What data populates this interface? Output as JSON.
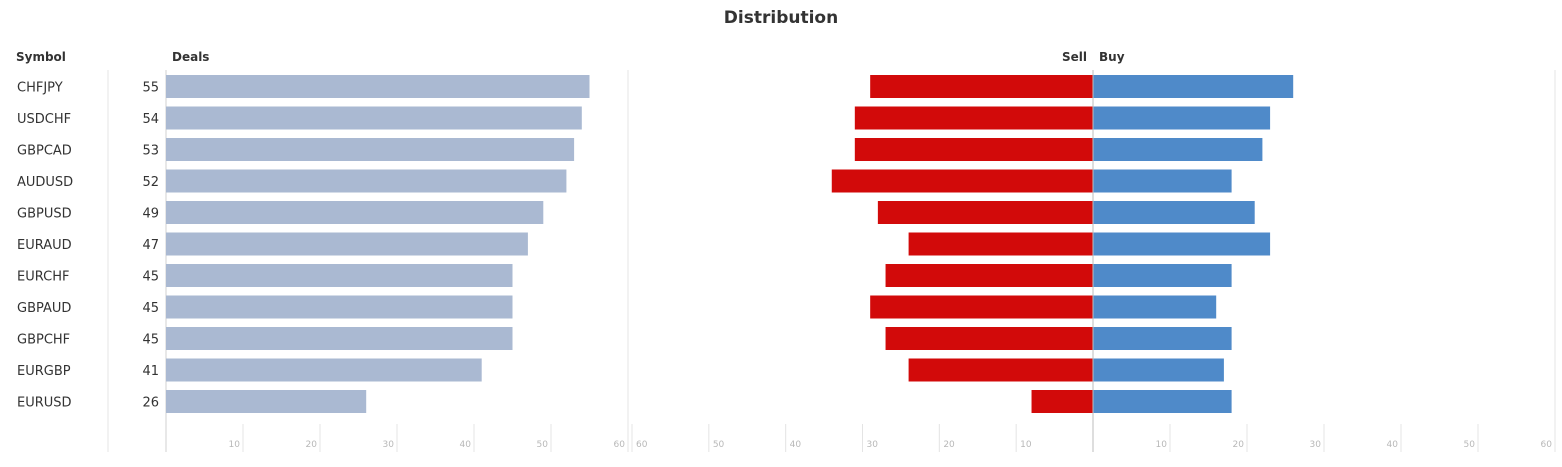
{
  "headers": {
    "symbol": "Symbol",
    "deals": "Deals",
    "sell": "Sell",
    "buy": "Buy"
  },
  "chart_data": {
    "title": "Distribution",
    "type": "bar",
    "categories": [
      "CHFJPY",
      "USDCHF",
      "GBPCAD",
      "AUDUSD",
      "GBPUSD",
      "EURAUD",
      "EURCHF",
      "GBPAUD",
      "GBPCHF",
      "EURGBP",
      "EURUSD"
    ],
    "series": [
      {
        "name": "Deals",
        "values": [
          55,
          54,
          53,
          52,
          49,
          47,
          45,
          45,
          45,
          41,
          26
        ],
        "color": "#aab9d2"
      },
      {
        "name": "Sell",
        "values": [
          29,
          31,
          31,
          34,
          28,
          24,
          27,
          29,
          27,
          24,
          8
        ],
        "color": "#d20a0a"
      },
      {
        "name": "Buy",
        "values": [
          26,
          23,
          22,
          18,
          21,
          23,
          18,
          16,
          18,
          17,
          18
        ],
        "color": "#4f8ac9"
      }
    ],
    "deals_axis": {
      "range": [
        0,
        60
      ],
      "ticks": [
        10,
        20,
        30,
        40,
        50,
        60
      ]
    },
    "sell_axis": {
      "range": [
        60,
        0
      ],
      "ticks": [
        60,
        50,
        40,
        30,
        20,
        10
      ]
    },
    "buy_axis": {
      "range": [
        0,
        60
      ],
      "ticks": [
        10,
        20,
        30,
        40,
        50,
        60
      ]
    },
    "grid": true,
    "legend": "none"
  }
}
